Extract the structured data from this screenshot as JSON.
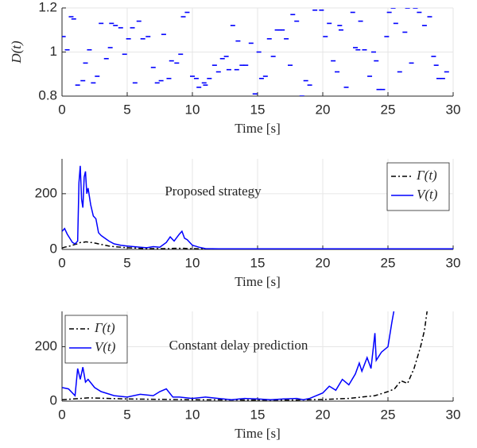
{
  "chart_data": [
    {
      "type": "scatter",
      "xlabel": "Time [s]",
      "ylabel": "D(t)",
      "xlim": [
        0,
        30
      ],
      "xticks": [
        0,
        5,
        10,
        15,
        20,
        25,
        30
      ],
      "ylim": [
        0.8,
        1.2
      ],
      "yticks": [
        0.8,
        1,
        1.2
      ],
      "grid": true,
      "color": "#0000ff",
      "x": [
        0.1,
        0.4,
        0.7,
        0.9,
        1.2,
        1.6,
        1.8,
        2.1,
        2.4,
        2.7,
        3.0,
        3.4,
        3.7,
        3.8,
        4.1,
        4.5,
        4.8,
        5.1,
        5.4,
        5.6,
        5.9,
        6.2,
        6.6,
        7.0,
        7.3,
        7.6,
        7.8,
        8.2,
        8.4,
        8.8,
        9.1,
        9.3,
        9.6,
        10.0,
        10.3,
        10.5,
        10.9,
        11.0,
        11.3,
        11.7,
        12.0,
        12.3,
        12.6,
        12.8,
        13.1,
        13.4,
        13.5,
        13.8,
        14.1,
        14.5,
        14.8,
        15.1,
        15.3,
        15.6,
        15.9,
        16.2,
        16.5,
        16.7,
        16.9,
        17.2,
        17.5,
        17.7,
        18.0,
        18.4,
        18.7,
        19.0,
        19.4,
        19.9,
        20.2,
        20.5,
        20.8,
        21.1,
        21.3,
        21.4,
        21.8,
        22.3,
        22.5,
        22.7,
        22.9,
        23.2,
        23.6,
        23.9,
        24.1,
        24.3,
        24.6,
        24.9,
        25.1,
        25.4,
        25.6,
        25.9,
        26.3,
        26.5,
        26.8,
        27.1,
        27.4,
        27.8,
        28.2,
        28.5,
        28.7,
        28.9,
        29.2,
        29.5
      ],
      "values": [
        1.07,
        1.01,
        1.16,
        1.15,
        0.85,
        0.87,
        0.95,
        1.01,
        0.86,
        0.89,
        1.13,
        0.97,
        1.02,
        1.13,
        1.12,
        1.11,
        0.99,
        1.06,
        1.11,
        0.86,
        1.14,
        1.06,
        1.07,
        0.93,
        0.86,
        0.87,
        1.08,
        0.88,
        0.96,
        0.95,
        0.99,
        1.16,
        1.18,
        0.89,
        0.88,
        0.84,
        0.86,
        0.85,
        0.88,
        0.94,
        0.91,
        0.97,
        0.98,
        0.92,
        1.12,
        0.92,
        1.05,
        0.94,
        0.94,
        1.04,
        0.81,
        1.0,
        0.88,
        0.89,
        1.06,
        0.98,
        1.1,
        1.1,
        1.1,
        1.06,
        0.94,
        1.17,
        1.14,
        0.8,
        0.87,
        0.85,
        1.19,
        1.19,
        1.07,
        1.13,
        0.96,
        0.91,
        1.12,
        1.1,
        0.84,
        1.18,
        1.02,
        1.01,
        1.14,
        1.01,
        0.89,
        1.0,
        0.96,
        0.83,
        0.83,
        1.07,
        1.18,
        1.2,
        1.13,
        0.91,
        1.09,
        1.2,
        0.95,
        1.2,
        1.18,
        1.12,
        1.16,
        0.98,
        0.94,
        0.88,
        0.88,
        0.91
      ]
    },
    {
      "type": "line",
      "xlabel": "Time [s]",
      "annotation": "Proposed strategy",
      "xlim": [
        0,
        30
      ],
      "xticks": [
        0,
        5,
        10,
        15,
        20,
        25,
        30
      ],
      "ylim": [
        0,
        325
      ],
      "yticks": [
        0,
        200
      ],
      "grid": true,
      "legend": "upper right",
      "series": [
        {
          "name": "Γ(t)",
          "color": "#000000",
          "linestyle": "dashdot",
          "x": [
            0,
            0.2,
            0.4,
            0.6,
            0.8,
            1.0,
            1.2,
            1.3,
            1.4,
            1.5,
            1.6,
            1.7,
            1.8,
            1.9,
            2.0,
            2.2,
            2.4,
            2.6,
            2.8,
            3.0,
            3.3,
            3.6,
            4.0,
            4.5,
            5,
            5.5,
            6,
            6.5,
            7,
            7.5,
            8,
            8.3,
            8.6,
            9.0,
            9.2,
            9.4,
            9.6,
            10,
            10.5,
            11,
            12,
            14,
            16,
            18,
            20,
            22,
            24,
            26,
            28,
            30
          ],
          "values": [
            5,
            8,
            10,
            12,
            15,
            18,
            20,
            22,
            25,
            25,
            25,
            26,
            27,
            27,
            26,
            25,
            24,
            22,
            20,
            18,
            15,
            12,
            10,
            8,
            6,
            5,
            4,
            3,
            3,
            3,
            3,
            3,
            4,
            4,
            4,
            4,
            3,
            3,
            2,
            2,
            2,
            2,
            2,
            2,
            2,
            2,
            2,
            2,
            2,
            2
          ]
        },
        {
          "name": "V(t)",
          "color": "#0000ff",
          "linestyle": "solid",
          "x": [
            0,
            0.2,
            0.4,
            0.6,
            0.8,
            1.0,
            1.2,
            1.3,
            1.4,
            1.5,
            1.6,
            1.7,
            1.8,
            1.9,
            2.0,
            2.2,
            2.4,
            2.6,
            2.8,
            3.0,
            3.3,
            3.6,
            4.0,
            4.5,
            5,
            5.5,
            6,
            6.5,
            7,
            7.5,
            8,
            8.3,
            8.6,
            9.0,
            9.2,
            9.4,
            9.6,
            10,
            10.5,
            11,
            12,
            14,
            16,
            18,
            20,
            22,
            24,
            26,
            28,
            30
          ],
          "values": [
            65,
            75,
            55,
            40,
            25,
            20,
            30,
            240,
            300,
            180,
            150,
            260,
            280,
            200,
            220,
            160,
            120,
            110,
            60,
            50,
            40,
            30,
            20,
            15,
            12,
            10,
            8,
            6,
            10,
            8,
            25,
            45,
            30,
            55,
            65,
            40,
            35,
            15,
            8,
            3,
            2,
            2,
            2,
            2,
            2,
            2,
            2,
            2,
            2,
            2
          ]
        }
      ]
    },
    {
      "type": "line",
      "xlabel": "Time [s]",
      "annotation": "Constant delay prediction",
      "xlim": [
        0,
        30
      ],
      "xticks": [
        0,
        5,
        10,
        15,
        20,
        25,
        30
      ],
      "ylim": [
        0,
        330
      ],
      "yticks": [
        0,
        200
      ],
      "grid": true,
      "legend": "upper left",
      "series": [
        {
          "name": "Γ(t)",
          "color": "#000000",
          "linestyle": "dashdot",
          "x": [
            0,
            2,
            5,
            10,
            15,
            18,
            20,
            22,
            23,
            24,
            25,
            25.5,
            26,
            26.5,
            27,
            27.5,
            27.8,
            28
          ],
          "values": [
            5,
            12,
            8,
            5,
            4,
            4,
            6,
            10,
            15,
            20,
            35,
            45,
            75,
            65,
            120,
            200,
            260,
            330
          ]
        },
        {
          "name": "V(t)",
          "color": "#0000ff",
          "linestyle": "solid",
          "x": [
            0,
            0.5,
            1,
            1.2,
            1.4,
            1.6,
            1.8,
            2,
            2.5,
            3,
            4,
            5,
            6,
            7,
            7.5,
            8,
            8.5,
            9,
            10,
            11,
            12,
            13,
            14,
            15,
            16,
            17,
            18,
            18.5,
            19,
            20,
            20.5,
            21,
            21.5,
            22,
            22.5,
            22.8,
            23,
            23.4,
            23.7,
            24,
            24.1,
            24.5,
            25,
            25.3,
            25.6
          ],
          "values": [
            50,
            45,
            20,
            120,
            80,
            125,
            70,
            80,
            50,
            35,
            20,
            15,
            25,
            20,
            35,
            45,
            15,
            15,
            10,
            15,
            10,
            5,
            10,
            8,
            5,
            8,
            10,
            5,
            10,
            30,
            55,
            40,
            80,
            60,
            100,
            140,
            110,
            160,
            120,
            250,
            150,
            180,
            200,
            290,
            370
          ]
        }
      ]
    }
  ]
}
